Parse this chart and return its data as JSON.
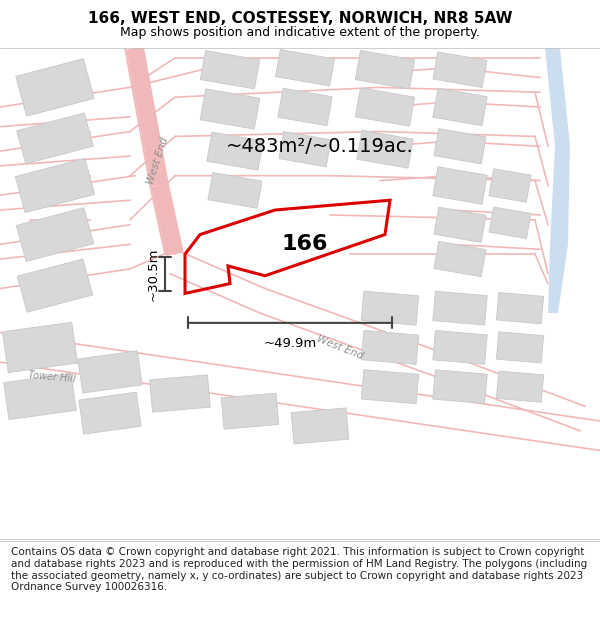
{
  "title": "166, WEST END, COSTESSEY, NORWICH, NR8 5AW",
  "subtitle": "Map shows position and indicative extent of the property.",
  "footer": "Contains OS data © Crown copyright and database right 2021. This information is subject to Crown copyright and database rights 2023 and is reproduced with the permission of HM Land Registry. The polygons (including the associated geometry, namely x, y co-ordinates) are subject to Crown copyright and database rights 2023 Ordnance Survey 100026316.",
  "area_label": "~483m²/~0.119ac.",
  "property_label": "166",
  "dim_width": "~49.9m",
  "dim_height": "~30.5m",
  "street_label_upper": "West End",
  "street_label_lower": "West End",
  "street_label_side": "Tower Hill",
  "map_bg": "#ffffff",
  "road_color": "#f0b8b8",
  "road_linewidth": 1.2,
  "block_color": "#d8d8d8",
  "block_edge_color": "#c8c8c8",
  "water_color": "#ccddf0",
  "red_color": "#dd0000",
  "dim_color": "#444444",
  "title_fontsize": 11,
  "subtitle_fontsize": 9,
  "footer_fontsize": 7.5
}
